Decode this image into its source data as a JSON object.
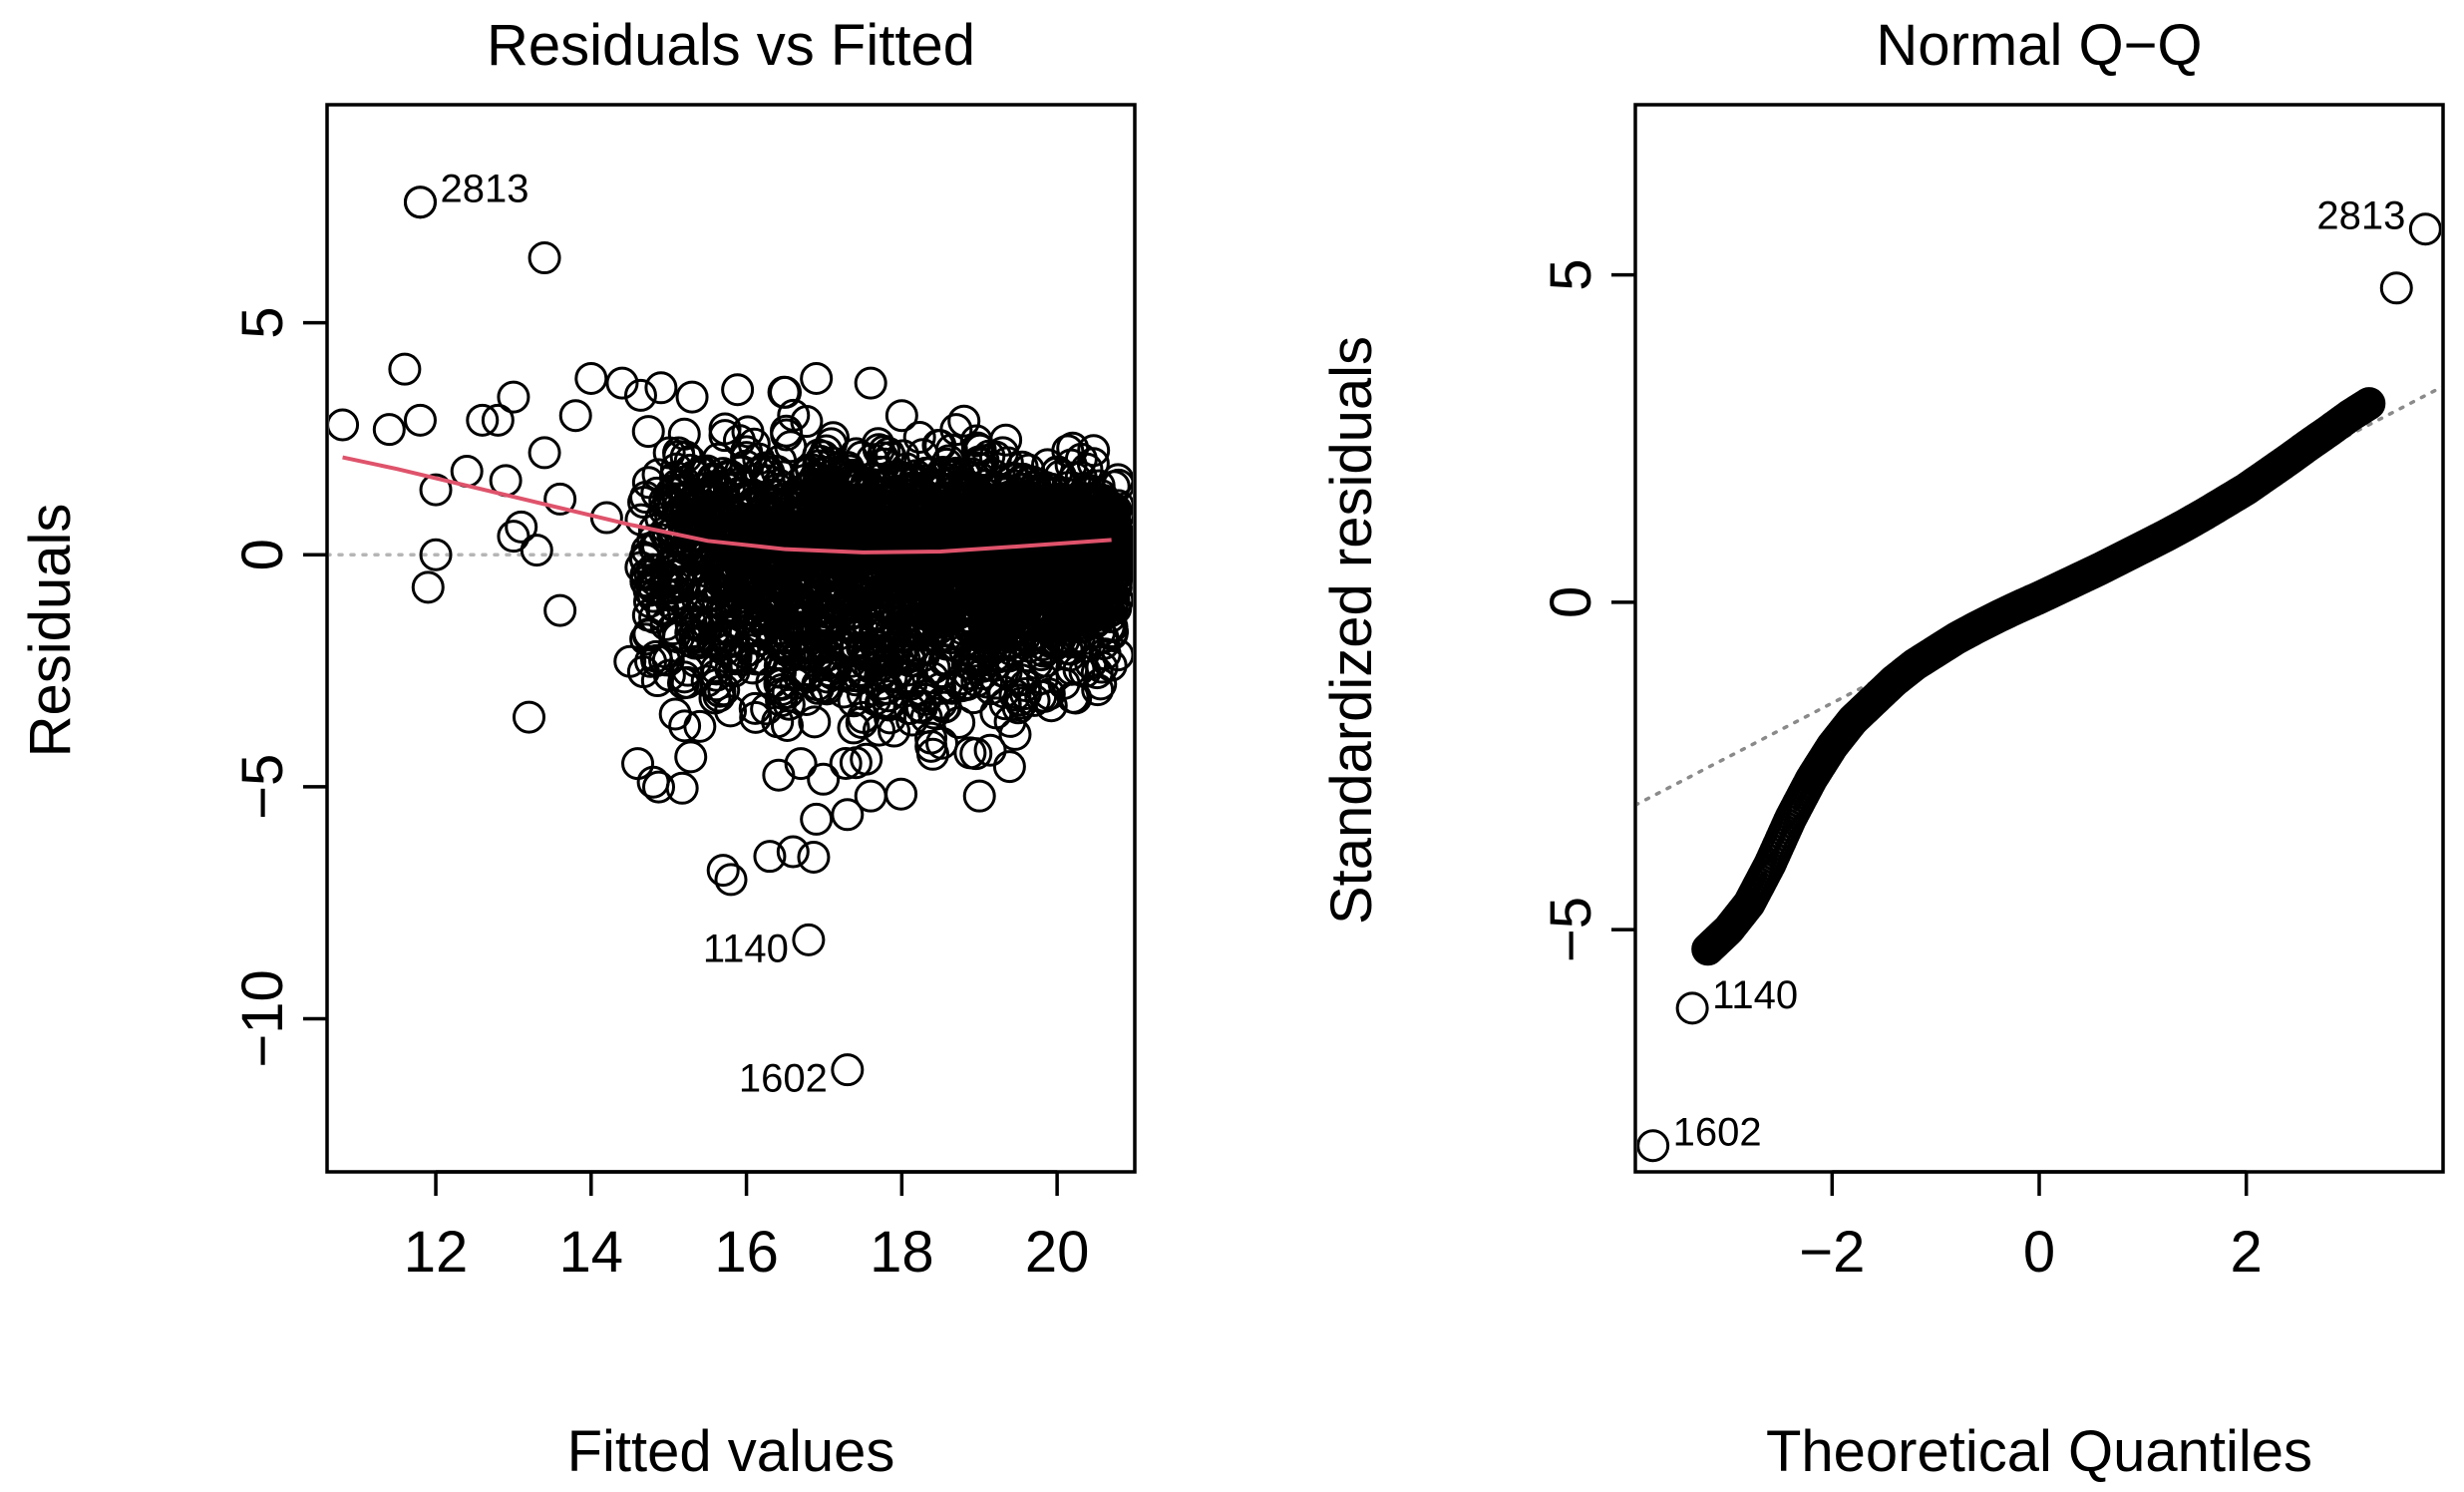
{
  "colors": {
    "smoother": "#DF536B",
    "points": "#000000",
    "refline": "#8A8A8A"
  },
  "chart_data": [
    {
      "type": "scatter",
      "panel": "residuals-vs-fitted",
      "title": "Residuals vs Fitted",
      "xlabel": "Fitted values",
      "ylabel": "Residuals",
      "xlim": [
        10.6,
        21.0
      ],
      "ylim": [
        -13.3,
        9.7
      ],
      "xticks": [
        12,
        14,
        16,
        18,
        20
      ],
      "yticks": [
        -10,
        -5,
        0,
        5
      ],
      "xtick_labels": [
        "12",
        "14",
        "16",
        "18",
        "20"
      ],
      "ytick_labels": [
        "−10",
        "−5",
        "0",
        "5"
      ],
      "reference_line": {
        "y": 0,
        "style": "dotted"
      },
      "series": [
        {
          "values": [
            [
              11.8,
              7.6
            ],
            [
              13.4,
              6.4
            ],
            [
              10.8,
              2.8
            ],
            [
              11.4,
              2.7
            ],
            [
              11.6,
              4.0
            ],
            [
              11.8,
              2.9
            ],
            [
              12.0,
              1.4
            ],
            [
              12.0,
              0.0
            ],
            [
              11.9,
              -0.7
            ],
            [
              12.4,
              1.8
            ],
            [
              12.6,
              2.9
            ],
            [
              12.8,
              2.9
            ],
            [
              13.0,
              3.4
            ],
            [
              12.9,
              1.6
            ],
            [
              13.1,
              0.6
            ],
            [
              13.0,
              0.4
            ],
            [
              13.3,
              0.1
            ],
            [
              13.2,
              -3.5
            ],
            [
              13.4,
              2.2
            ],
            [
              13.6,
              1.2
            ],
            [
              13.6,
              -1.2
            ],
            [
              13.8,
              3.0
            ],
            [
              14.0,
              3.8
            ],
            [
              14.4,
              3.7
            ],
            [
              14.9,
              3.6
            ],
            [
              15.3,
              3.4
            ],
            [
              14.5,
              -2.3
            ],
            [
              14.6,
              -4.5
            ],
            [
              14.8,
              -4.9
            ],
            [
              15.4,
              -3.7
            ],
            [
              15.7,
              -6.8
            ],
            [
              15.8,
              -7.0
            ],
            [
              16.3,
              -6.5
            ],
            [
              16.6,
              -6.4
            ],
            [
              16.9,
              -5.7
            ],
            [
              17.3,
              -5.6
            ],
            [
              17.6,
              -5.2
            ],
            [
              19.0,
              -5.2
            ],
            [
              18.4,
              -4.3
            ],
            [
              19.5,
              -3.3
            ],
            [
              19.9,
              -3.0
            ],
            [
              20.6,
              0.6
            ],
            [
              20.4,
              1.2
            ],
            [
              20.2,
              2.3
            ],
            [
              16.9,
              3.8
            ],
            [
              17.6,
              3.7
            ],
            [
              16.5,
              3.5
            ],
            [
              18.0,
              3.0
            ],
            [
              18.7,
              2.7
            ],
            [
              19.3,
              2.2
            ],
            [
              20.5,
              -0.8
            ],
            [
              20.0,
              -1.9
            ],
            [
              15.0,
              1.2
            ],
            [
              15.8,
              0.4
            ],
            [
              16.2,
              -1.1
            ],
            [
              16.8,
              -2.0
            ],
            [
              17.2,
              -0.6
            ],
            [
              17.8,
              0.9
            ],
            [
              18.3,
              1.6
            ],
            [
              18.9,
              -0.3
            ],
            [
              19.4,
              0.8
            ],
            [
              19.8,
              1.1
            ],
            [
              16.0,
              2.1
            ],
            [
              17.0,
              1.3
            ],
            [
              17.5,
              -3.0
            ],
            [
              18.1,
              -2.2
            ],
            [
              16.4,
              -3.6
            ],
            [
              16.7,
              -4.5
            ],
            [
              17.9,
              -3.8
            ],
            [
              15.5,
              -1.5
            ],
            [
              14.2,
              0.8
            ],
            [
              14.8,
              -0.9
            ],
            [
              15.2,
              2.6
            ],
            [
              18.6,
              -1.4
            ],
            [
              19.1,
              0.2
            ],
            [
              20.1,
              0.5
            ]
          ],
          "note_points": "dense cloud of several thousand points between fitted 14.5 and 20.8"
        }
      ],
      "labeled_points": [
        {
          "label": "2813",
          "x": 11.8,
          "y": 7.6
        },
        {
          "label": "1140",
          "x": 16.8,
          "y": -8.3
        },
        {
          "label": "1602",
          "x": 17.3,
          "y": -11.1
        }
      ],
      "smoother": {
        "x": [
          10.8,
          11.5,
          12.5,
          13.5,
          14.5,
          15.5,
          16.5,
          17.5,
          18.5,
          19.5,
          20.7
        ],
        "y": [
          2.1,
          1.85,
          1.45,
          1.05,
          0.65,
          0.3,
          0.12,
          0.05,
          0.07,
          0.18,
          0.32
        ]
      },
      "grid": false
    },
    {
      "type": "scatter",
      "panel": "normal-qq",
      "title": "Normal Q−Q",
      "xlabel": "Theoretical Quantiles",
      "ylabel": "Standardized residuals",
      "xlim": [
        -3.9,
        3.9
      ],
      "ylim": [
        -8.7,
        7.6
      ],
      "xticks": [
        -2,
        0,
        2
      ],
      "yticks": [
        -5,
        0,
        5
      ],
      "xtick_labels": [
        "−2",
        "0",
        "2"
      ],
      "ytick_labels": [
        "−5",
        "0",
        "5"
      ],
      "reference_line": {
        "intercept": 0.1,
        "slope": 0.82,
        "style": "dotted"
      },
      "qq_curve": {
        "x": [
          -3.2,
          -3.0,
          -2.8,
          -2.6,
          -2.4,
          -2.2,
          -2.0,
          -1.8,
          -1.6,
          -1.4,
          -1.2,
          -1.0,
          -0.8,
          -0.6,
          -0.4,
          -0.2,
          0.0,
          0.2,
          0.4,
          0.6,
          0.8,
          1.0,
          1.2,
          1.4,
          1.6,
          1.8,
          2.0,
          2.2,
          2.4,
          2.6,
          2.8,
          3.0,
          3.2
        ],
        "y": [
          -5.3,
          -5.0,
          -4.6,
          -4.0,
          -3.3,
          -2.7,
          -2.2,
          -1.8,
          -1.5,
          -1.2,
          -0.95,
          -0.75,
          -0.55,
          -0.38,
          -0.22,
          -0.07,
          0.07,
          0.22,
          0.37,
          0.52,
          0.68,
          0.84,
          1.0,
          1.17,
          1.35,
          1.54,
          1.73,
          1.95,
          2.17,
          2.4,
          2.62,
          2.85,
          3.05
        ]
      },
      "labeled_points": [
        {
          "label": "2813",
          "x": 3.73,
          "y": 5.7
        },
        {
          "label": "1140",
          "x": -3.35,
          "y": -6.2
        },
        {
          "label": "1602",
          "x": -3.73,
          "y": -8.3
        }
      ],
      "extra_points": [
        {
          "x": 3.45,
          "y": 4.8
        }
      ],
      "grid": false
    }
  ]
}
